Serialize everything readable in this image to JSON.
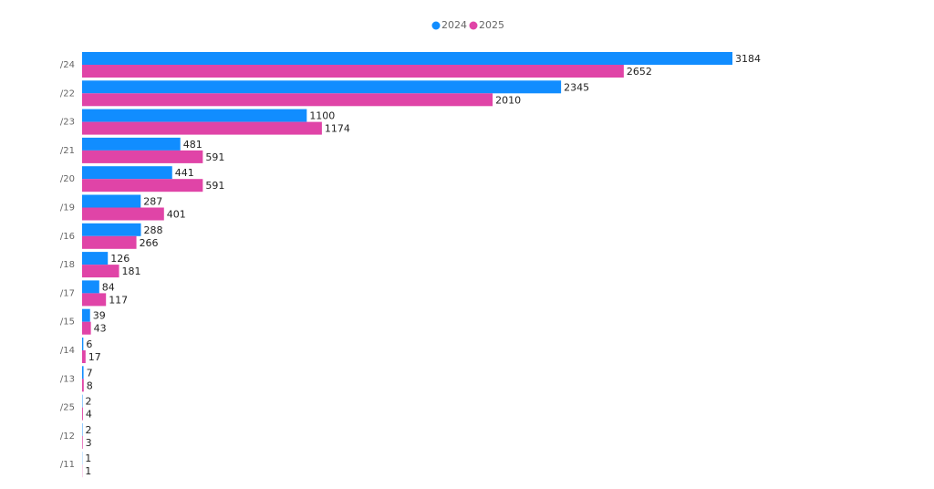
{
  "chart_data": {
    "type": "bar",
    "orientation": "horizontal",
    "categories": [
      "/24",
      "/22",
      "/23",
      "/21",
      "/20",
      "/19",
      "/16",
      "/18",
      "/17",
      "/15",
      "/14",
      "/13",
      "/25",
      "/12",
      "/11"
    ],
    "series": [
      {
        "name": "2024",
        "color": "#118DFF",
        "values": [
          3184,
          2345,
          1100,
          481,
          441,
          287,
          288,
          126,
          84,
          39,
          6,
          7,
          2,
          2,
          1
        ]
      },
      {
        "name": "2025",
        "color": "#E044A7",
        "values": [
          2652,
          2010,
          1174,
          591,
          591,
          401,
          266,
          181,
          117,
          43,
          17,
          8,
          4,
          3,
          1
        ]
      }
    ],
    "legend": "top"
  }
}
